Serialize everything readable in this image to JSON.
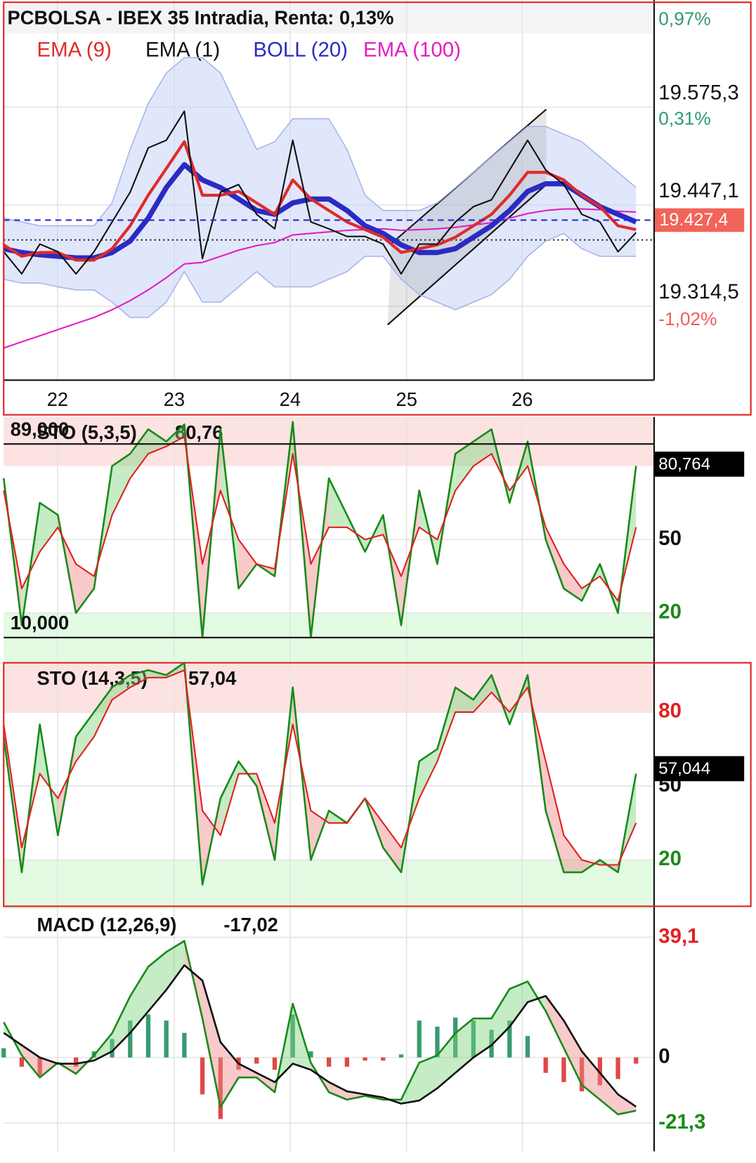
{
  "chart_data": [
    {
      "type": "line",
      "title": "PCBOLSA - IBEX 35 Intradia, Renta: 0,13%",
      "xlim": [
        0,
        36
      ],
      "xticks": [
        {
          "value": 2.98,
          "label": "22"
        },
        {
          "value": 9.44,
          "label": "23"
        },
        {
          "value": 15.85,
          "label": "24"
        },
        {
          "value": 22.3,
          "label": "25"
        },
        {
          "value": 28.7,
          "label": "26"
        }
      ],
      "ylim": [
        19217.9,
        19715.5
      ],
      "yticks": [
        {
          "value": 19575.3,
          "label": "19.575,3"
        },
        {
          "value": 19447.1,
          "label": "19.447,1"
        },
        {
          "value": 19314.5,
          "label": "19.314,5"
        }
      ],
      "grid": true,
      "annotations": [
        {
          "text": "0,97%",
          "color": "#2e9a6e"
        },
        {
          "text": "0,31%",
          "color": "#2e9a6e"
        },
        {
          "text": "-1,02%",
          "color": "#f05a5a"
        }
      ],
      "last_price": {
        "value": 19427.4,
        "label": "19.427,4",
        "color": "#f2645a"
      },
      "series": [
        {
          "name": "EMA (9)",
          "color": "#e02b2b",
          "values": [
            19395,
            19380,
            19385,
            19385,
            19375,
            19375,
            19390,
            19420,
            19460,
            19495,
            19530,
            19460,
            19460,
            19465,
            19450,
            19435,
            19480,
            19455,
            19440,
            19425,
            19415,
            19405,
            19385,
            19390,
            19395,
            19405,
            19420,
            19435,
            19460,
            19490,
            19490,
            19480,
            19460,
            19445,
            19420,
            19415
          ]
        },
        {
          "name": "EMA (1)",
          "color": "#111111",
          "values": [
            19386,
            19357,
            19396,
            19386,
            19357,
            19386,
            19425,
            19464,
            19522,
            19532,
            19570,
            19377,
            19464,
            19474,
            19435,
            19416,
            19532,
            19425,
            19416,
            19406,
            19406,
            19396,
            19357,
            19396,
            19396,
            19425,
            19445,
            19454,
            19493,
            19532,
            19493,
            19474,
            19435,
            19425,
            19386,
            19411
          ]
        },
        {
          "name": "BOLL (20)",
          "color": "#2b2bc4",
          "values": [
            19390,
            19385,
            19382,
            19380,
            19378,
            19378,
            19385,
            19400,
            19430,
            19470,
            19500,
            19480,
            19470,
            19455,
            19440,
            19435,
            19450,
            19455,
            19455,
            19440,
            19420,
            19410,
            19395,
            19385,
            19385,
            19390,
            19405,
            19420,
            19440,
            19465,
            19475,
            19475,
            19460,
            19445,
            19435,
            19425
          ],
          "upper": [
            19430,
            19425,
            19420,
            19420,
            19420,
            19420,
            19450,
            19520,
            19580,
            19620,
            19640,
            19640,
            19620,
            19570,
            19520,
            19530,
            19560,
            19560,
            19560,
            19520,
            19460,
            19440,
            19440,
            19440,
            19450,
            19470,
            19490,
            19510,
            19530,
            19550,
            19550,
            19540,
            19530,
            19510,
            19490,
            19470
          ],
          "lower": [
            19350,
            19345,
            19345,
            19340,
            19336,
            19336,
            19320,
            19300,
            19300,
            19320,
            19360,
            19320,
            19320,
            19340,
            19360,
            19340,
            19340,
            19340,
            19350,
            19360,
            19380,
            19380,
            19350,
            19330,
            19320,
            19310,
            19320,
            19330,
            19350,
            19380,
            19400,
            19410,
            19390,
            19380,
            19380,
            19380
          ]
        },
        {
          "name": "EMA (100)",
          "color": "#e020c0",
          "values": [
            19260,
            19268,
            19276,
            19284,
            19292,
            19300,
            19310,
            19322,
            19336,
            19352,
            19370,
            19372,
            19380,
            19388,
            19394,
            19398,
            19408,
            19410,
            19412,
            19414,
            19415,
            19416,
            19414,
            19415,
            19416,
            19418,
            19421,
            19424,
            19430,
            19436,
            19440,
            19442,
            19442,
            19441,
            19439,
            19438
          ]
        }
      ]
    },
    {
      "type": "stochastic",
      "title": "STO (5,3,5)",
      "value_label": "80,76",
      "xlim": [
        0,
        36
      ],
      "ylim": [
        0,
        100
      ],
      "yticks": [
        20,
        50
      ],
      "ytick_colors": [
        "#1a8a1a",
        "#111111"
      ],
      "overbought": 80,
      "oversold": 20,
      "levels": [
        {
          "value": 89,
          "label": "89,000"
        },
        {
          "value": 10,
          "label": "10,000"
        }
      ],
      "last_label": {
        "value": 80.764,
        "label": "80,764"
      },
      "series": [
        {
          "color": "#1a8a1a",
          "values": [
            75,
            15,
            65,
            60,
            20,
            30,
            80,
            85,
            95,
            90,
            97,
            10,
            95,
            30,
            40,
            35,
            98,
            10,
            75,
            60,
            45,
            60,
            15,
            70,
            40,
            85,
            90,
            95,
            65,
            90,
            50,
            30,
            25,
            40,
            20,
            80
          ]
        },
        {
          "color": "#e02020",
          "values": [
            70,
            30,
            45,
            55,
            40,
            35,
            60,
            75,
            85,
            88,
            92,
            40,
            70,
            50,
            40,
            38,
            85,
            40,
            55,
            55,
            50,
            52,
            35,
            55,
            50,
            70,
            80,
            85,
            70,
            80,
            55,
            40,
            30,
            35,
            25,
            55
          ]
        }
      ]
    },
    {
      "type": "stochastic",
      "title": "STO (14,3,5)",
      "value_label": "57,04",
      "xlim": [
        0,
        36
      ],
      "ylim": [
        0,
        100
      ],
      "yticks": [
        20,
        50,
        80
      ],
      "ytick_colors": [
        "#1a8a1a",
        "#111111",
        "#e02020"
      ],
      "overbought": 80,
      "oversold": 20,
      "last_label": {
        "value": 57.044,
        "label": "57,044"
      },
      "series": [
        {
          "color": "#1a8a1a",
          "values": [
            70,
            15,
            75,
            30,
            70,
            80,
            90,
            95,
            97,
            95,
            100,
            10,
            45,
            60,
            50,
            20,
            90,
            20,
            40,
            35,
            45,
            25,
            15,
            60,
            65,
            90,
            85,
            95,
            75,
            95,
            40,
            15,
            15,
            20,
            15,
            55
          ]
        },
        {
          "color": "#e02020",
          "values": [
            75,
            25,
            55,
            45,
            60,
            70,
            85,
            90,
            94,
            94,
            97,
            40,
            30,
            55,
            55,
            35,
            75,
            40,
            35,
            35,
            45,
            35,
            25,
            45,
            60,
            80,
            80,
            88,
            80,
            90,
            60,
            30,
            20,
            18,
            18,
            35
          ]
        }
      ]
    },
    {
      "type": "macd",
      "title": "MACD (12,26,9)",
      "value_label": "-17,02",
      "xlim": [
        0,
        36
      ],
      "ylim": [
        -30.5,
        48.2
      ],
      "yticks": [
        {
          "value": 39.1,
          "label": "39,1"
        },
        0,
        {
          "value": -21.3,
          "label": "-21,3"
        }
      ],
      "ytick_colors": [
        "#e02020",
        "#111111",
        "#1a8a1a"
      ],
      "histogram_colors": [
        "#3a9a72",
        "#e04848"
      ],
      "histogram": [
        3,
        -3,
        -6,
        0,
        -3,
        2,
        6,
        12,
        14,
        12,
        8,
        -12,
        -20,
        -4,
        -2,
        -4,
        14,
        2,
        -3,
        -3,
        -1,
        -1,
        1,
        12,
        10,
        13,
        12,
        9,
        12,
        7,
        -5,
        -8,
        -11,
        -9,
        -7,
        -2
      ],
      "series": [
        {
          "color": "#1a8a1a",
          "values": [
            11.5,
            0.7,
            -6.5,
            -1.7,
            -5.3,
            0.7,
            7.9,
            19.9,
            29.5,
            34.3,
            37.9,
            12.7,
            -16.1,
            -6.5,
            -6.5,
            -11.3,
            17.5,
            -1.7,
            -11.3,
            -13.7,
            -12.5,
            -13.7,
            -13.7,
            -1.7,
            0.7,
            7.9,
            12.7,
            12.7,
            22.3,
            24.7,
            15.1,
            3.1,
            -8.9,
            -13.7,
            -18.5,
            -17.3
          ]
        },
        {
          "color": "#111111",
          "values": [
            8,
            4,
            0,
            -2,
            -2,
            -1,
            2,
            8,
            15,
            22,
            30,
            25,
            5,
            -2,
            -5,
            -8,
            -2,
            -4,
            -8,
            -11,
            -12,
            -13,
            -15,
            -14,
            -10,
            -5,
            0,
            4,
            10,
            18,
            20,
            12,
            2,
            -5,
            -12,
            -16
          ]
        }
      ]
    }
  ]
}
